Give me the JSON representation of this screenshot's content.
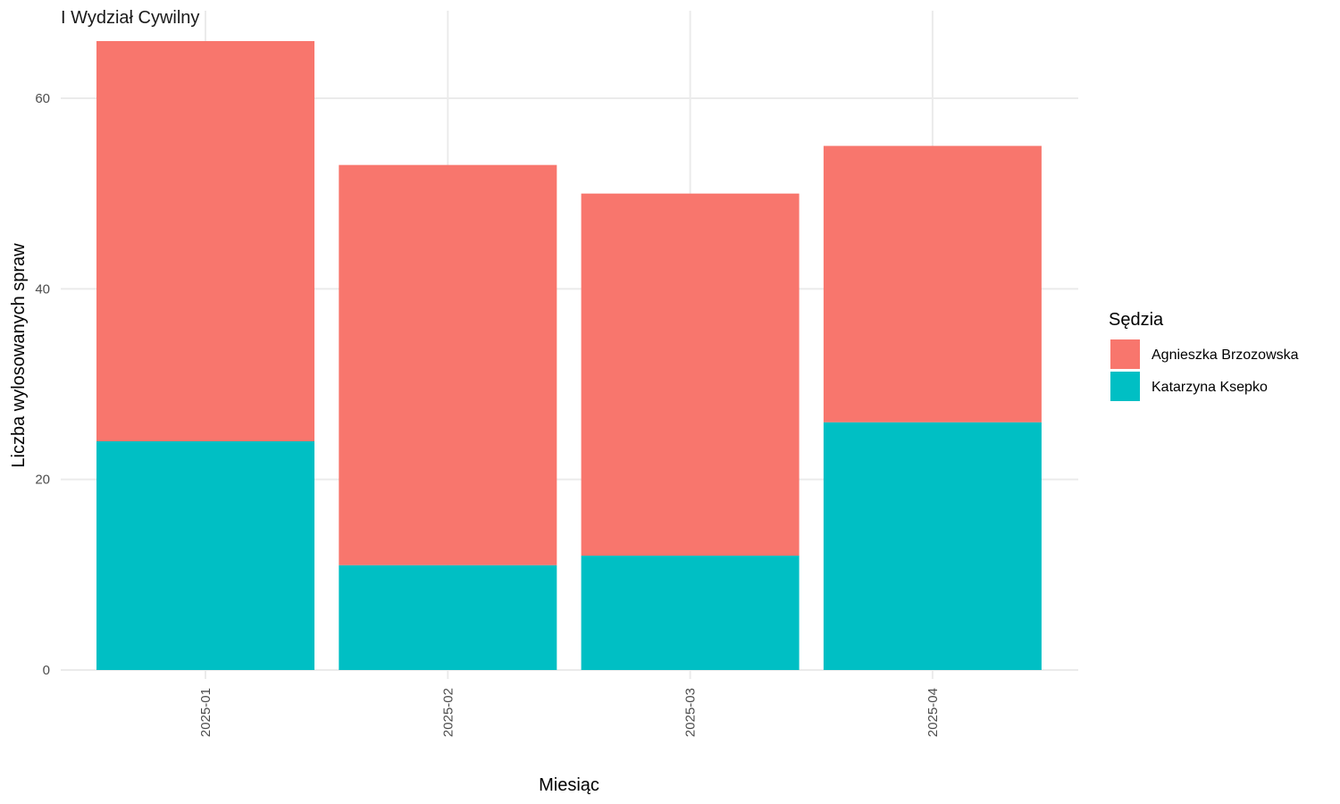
{
  "chart_data": {
    "type": "bar",
    "stacked": true,
    "title": "I Wydział Cywilny",
    "xlabel": "Miesiąc",
    "ylabel": "Liczba wylosowanych spraw",
    "categories": [
      "2025-01",
      "2025-02",
      "2025-03",
      "2025-04"
    ],
    "series": [
      {
        "name": "Katarzyna Ksepko",
        "color": "#00BFC4",
        "values": [
          24,
          11,
          12,
          26
        ]
      },
      {
        "name": "Agnieszka Brzozowska",
        "color": "#F8766D",
        "values": [
          42,
          42,
          38,
          29
        ]
      }
    ],
    "ylim": [
      0,
      66
    ],
    "yticks": [
      0,
      20,
      40,
      60
    ],
    "grid": true,
    "legend": {
      "title": "Sędzia",
      "placement": "right",
      "entries": [
        "Agnieszka Brzozowska",
        "Katarzyna Ksepko"
      ]
    }
  }
}
